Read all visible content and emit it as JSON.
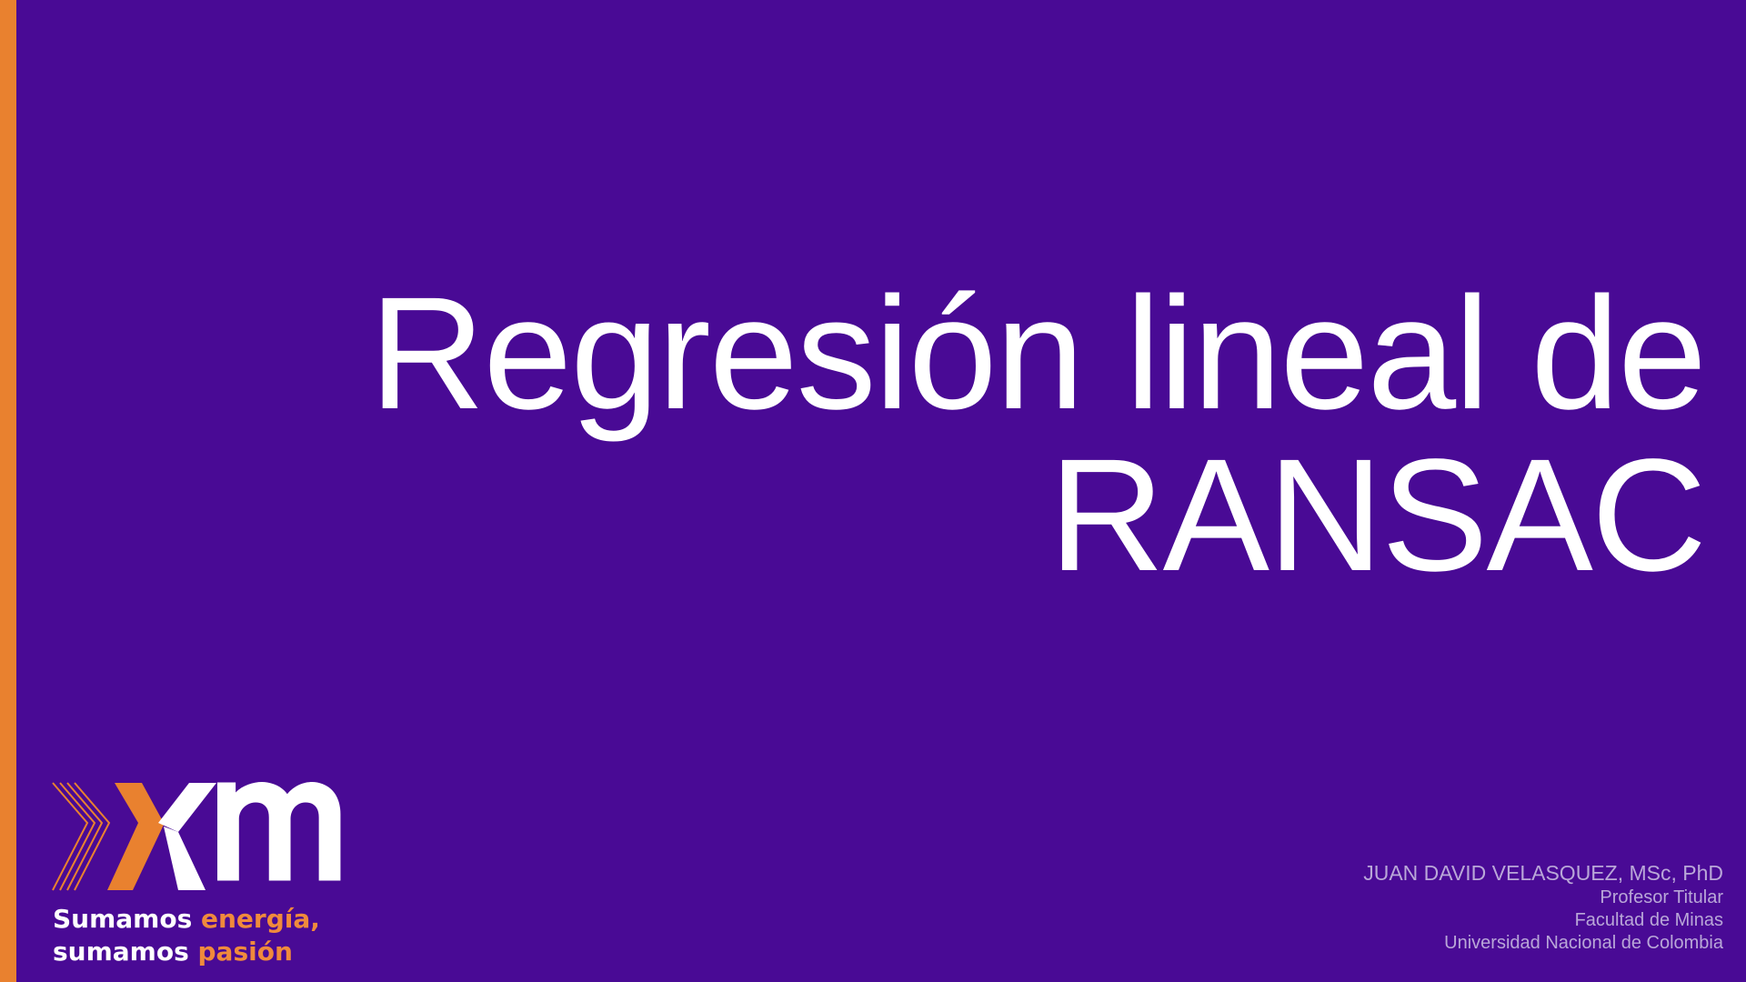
{
  "slide": {
    "title_line1": "Regresión lineal de",
    "title_line2": "RANSAC"
  },
  "logo": {
    "icon": "xm-logo",
    "tagline_line1_a": "Sumamos",
    "tagline_line1_b": "energía,",
    "tagline_line2_a": "sumamos",
    "tagline_line2_b": "pasión"
  },
  "author": {
    "name": "JUAN DAVID VELASQUEZ, MSc, PhD",
    "position": "Profesor Titular",
    "faculty": "Facultad de Minas",
    "university": "Universidad Nacional de Colombia"
  },
  "colors": {
    "background": "#490a95",
    "accent": "#e9812f",
    "text": "#ffffff",
    "author_text": "#b9a7d8"
  }
}
